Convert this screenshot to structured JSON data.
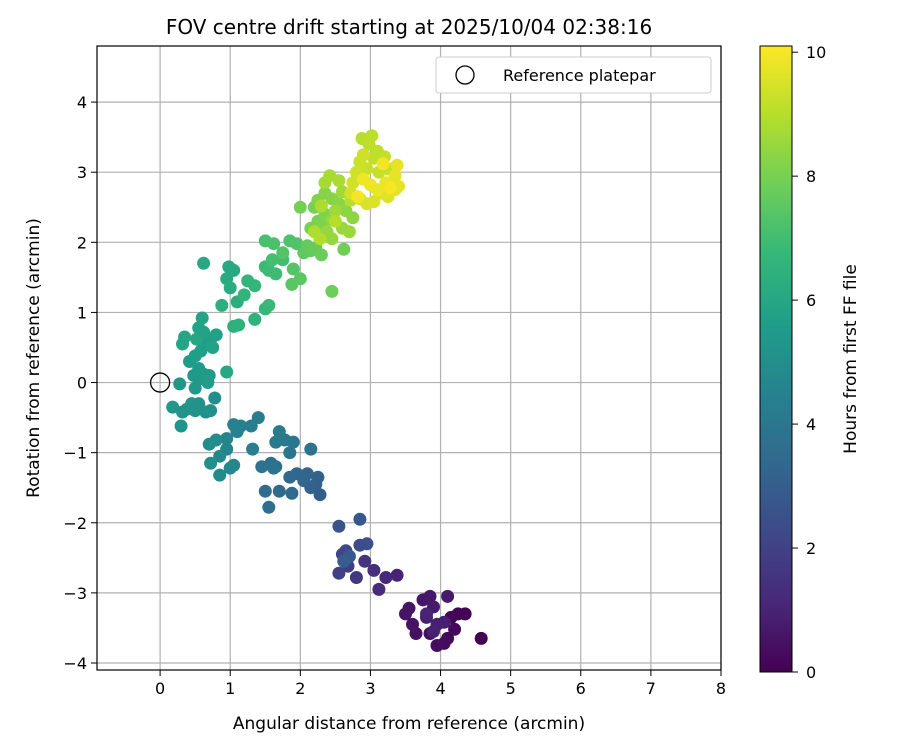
{
  "chart_data": {
    "type": "scatter",
    "title": "FOV centre drift starting at 2025/10/04 02:38:16",
    "xlabel": "Angular distance from reference (arcmin)",
    "ylabel": "Rotation from reference (arcmin)",
    "xlim": [
      -0.9,
      8.0
    ],
    "ylim": [
      -4.1,
      4.8
    ],
    "xticks": [
      "0",
      "1",
      "2",
      "3",
      "4",
      "5",
      "6",
      "7",
      "8"
    ],
    "yticks": [
      "−4",
      "−3",
      "−2",
      "−1",
      "0",
      "1",
      "2",
      "3",
      "4"
    ],
    "grid": true,
    "legend": {
      "location": "top-right",
      "entries": [
        "Reference platepar"
      ]
    },
    "reference_point": {
      "name": "Reference platepar",
      "x": 0,
      "y": 0
    },
    "colorbar": {
      "label": "Hours from first FF file",
      "min": 0,
      "max": 10.1,
      "ticks": [
        "0",
        "2",
        "4",
        "6",
        "8",
        "10"
      ],
      "colormap": [
        "#440154",
        "#482878",
        "#3e4989",
        "#31688e",
        "#26828e",
        "#1f9e89",
        "#35b779",
        "#6ece58",
        "#b5de2b",
        "#fde725"
      ]
    },
    "series": [
      {
        "name": "Hours 0-1",
        "points": [
          [
            4.58,
            -3.65
          ],
          [
            4.35,
            -3.3
          ],
          [
            4.25,
            -3.3
          ],
          [
            4.15,
            -3.35
          ],
          [
            4.2,
            -3.52
          ],
          [
            4.1,
            -3.65
          ],
          [
            4.05,
            -3.72
          ],
          [
            3.95,
            -3.75
          ],
          [
            3.85,
            -3.58
          ],
          [
            3.65,
            -3.58
          ],
          [
            3.6,
            -3.45
          ],
          [
            3.5,
            -3.3
          ],
          [
            3.55,
            -3.22
          ],
          [
            3.75,
            -3.1
          ],
          [
            3.85,
            -3.05
          ],
          [
            4.1,
            -3.05
          ],
          [
            3.9,
            -3.2
          ],
          [
            3.8,
            -3.35
          ],
          [
            3.95,
            -3.45
          ],
          [
            4.05,
            -3.42
          ],
          [
            3.9,
            -3.55
          ],
          [
            3.8,
            -3.3
          ]
        ],
        "hour_range": [
          0,
          1
        ]
      },
      {
        "name": "Hours 1-3",
        "points": [
          [
            3.38,
            -2.75
          ],
          [
            3.22,
            -2.78
          ],
          [
            3.12,
            -2.95
          ],
          [
            3.05,
            -2.68
          ],
          [
            2.92,
            -2.55
          ],
          [
            2.8,
            -2.78
          ],
          [
            2.68,
            -2.62
          ],
          [
            2.55,
            -2.72
          ],
          [
            2.6,
            -2.45
          ],
          [
            2.65,
            -2.4
          ],
          [
            2.85,
            -2.32
          ],
          [
            2.95,
            -2.3
          ],
          [
            2.55,
            -2.05
          ],
          [
            2.85,
            -1.95
          ],
          [
            2.7,
            -2.48
          ],
          [
            2.62,
            -2.55
          ]
        ],
        "hour_range": [
          1,
          3
        ]
      },
      {
        "name": "Hours 3-5",
        "points": [
          [
            2.28,
            -1.6
          ],
          [
            2.22,
            -1.45
          ],
          [
            2.15,
            -1.5
          ],
          [
            2.25,
            -1.35
          ],
          [
            2.1,
            -1.3
          ],
          [
            2.05,
            -1.4
          ],
          [
            1.95,
            -1.3
          ],
          [
            1.85,
            -1.35
          ],
          [
            1.88,
            -1.58
          ],
          [
            1.7,
            -1.55
          ],
          [
            1.5,
            -1.55
          ],
          [
            1.55,
            -1.78
          ],
          [
            1.65,
            -1.2
          ],
          [
            1.58,
            -1.15
          ],
          [
            1.45,
            -1.2
          ],
          [
            1.62,
            -1.22
          ],
          [
            2.15,
            -0.95
          ],
          [
            1.85,
            -1.0
          ],
          [
            1.9,
            -0.85
          ],
          [
            1.78,
            -0.82
          ],
          [
            1.65,
            -0.85
          ],
          [
            1.7,
            -0.7
          ],
          [
            1.4,
            -0.5
          ],
          [
            1.3,
            -0.62
          ],
          [
            1.32,
            -0.95
          ],
          [
            1.15,
            -0.62
          ],
          [
            1.05,
            -0.6
          ],
          [
            1.1,
            -0.7
          ],
          [
            0.95,
            -0.8
          ],
          [
            0.95,
            -0.95
          ],
          [
            1.05,
            -1.18
          ],
          [
            1.0,
            -1.22
          ],
          [
            0.85,
            -1.05
          ],
          [
            0.85,
            -1.32
          ],
          [
            0.8,
            -0.82
          ],
          [
            0.7,
            -0.88
          ],
          [
            0.72,
            -1.15
          ]
        ],
        "hour_range": [
          3,
          5
        ]
      },
      {
        "name": "Hours 5-6",
        "points": [
          [
            0.78,
            -0.22
          ],
          [
            0.72,
            -0.4
          ],
          [
            0.65,
            -0.42
          ],
          [
            0.55,
            -0.3
          ],
          [
            0.5,
            -0.4
          ],
          [
            0.45,
            -0.3
          ],
          [
            0.38,
            -0.38
          ],
          [
            0.32,
            -0.42
          ],
          [
            0.3,
            -0.62
          ],
          [
            0.18,
            -0.35
          ],
          [
            0.28,
            -0.02
          ],
          [
            0.5,
            -0.08
          ],
          [
            0.48,
            0.1
          ],
          [
            0.55,
            0.05
          ],
          [
            0.62,
            0.12
          ],
          [
            0.7,
            0.1
          ],
          [
            0.68,
            0.0
          ],
          [
            0.55,
            0.2
          ],
          [
            0.42,
            0.3
          ],
          [
            0.5,
            0.38
          ],
          [
            0.58,
            0.45
          ],
          [
            0.65,
            0.55
          ],
          [
            0.72,
            0.62
          ],
          [
            0.8,
            0.68
          ],
          [
            0.75,
            0.5
          ],
          [
            0.62,
            0.72
          ],
          [
            0.55,
            0.78
          ],
          [
            0.6,
            0.92
          ],
          [
            0.32,
            0.55
          ],
          [
            0.35,
            0.65
          ],
          [
            0.52,
            0.62
          ],
          [
            0.95,
            0.15
          ]
        ],
        "hour_range": [
          5,
          6
        ]
      },
      {
        "name": "Hours 6-8",
        "points": [
          [
            0.62,
            1.7
          ],
          [
            0.98,
            1.65
          ],
          [
            1.05,
            1.6
          ],
          [
            0.95,
            1.48
          ],
          [
            1.0,
            1.35
          ],
          [
            1.1,
            1.15
          ],
          [
            0.88,
            1.1
          ],
          [
            1.05,
            0.8
          ],
          [
            1.12,
            0.82
          ],
          [
            1.35,
            0.9
          ],
          [
            1.2,
            1.25
          ],
          [
            1.25,
            1.45
          ],
          [
            1.35,
            1.38
          ],
          [
            1.5,
            1.05
          ],
          [
            1.55,
            1.1
          ],
          [
            1.5,
            1.65
          ],
          [
            1.55,
            1.6
          ],
          [
            1.65,
            1.55
          ],
          [
            1.75,
            1.75
          ],
          [
            1.6,
            1.75
          ],
          [
            1.5,
            2.02
          ],
          [
            1.62,
            1.98
          ],
          [
            1.85,
            2.02
          ],
          [
            1.95,
            1.98
          ],
          [
            1.75,
            1.85
          ],
          [
            1.9,
            1.62
          ],
          [
            1.88,
            1.4
          ],
          [
            2.0,
            1.48
          ],
          [
            2.05,
            1.85
          ],
          [
            2.15,
            1.88
          ],
          [
            2.1,
            1.95
          ],
          [
            2.22,
            1.92
          ],
          [
            2.3,
            1.82
          ],
          [
            2.45,
            1.3
          ],
          [
            2.62,
            1.9
          ],
          [
            2.0,
            2.5
          ],
          [
            2.15,
            2.2
          ]
        ],
        "hour_range": [
          6,
          8
        ]
      },
      {
        "name": "Hours 8-9",
        "points": [
          [
            2.2,
            2.5
          ],
          [
            2.25,
            2.3
          ],
          [
            2.3,
            2.25
          ],
          [
            2.35,
            2.4
          ],
          [
            2.25,
            2.6
          ],
          [
            2.35,
            2.7
          ],
          [
            2.45,
            2.62
          ],
          [
            2.55,
            2.55
          ],
          [
            2.65,
            2.45
          ],
          [
            2.75,
            2.35
          ],
          [
            2.45,
            2.32
          ],
          [
            2.38,
            2.15
          ],
          [
            2.45,
            2.05
          ],
          [
            2.6,
            2.2
          ],
          [
            2.7,
            2.15
          ],
          [
            2.5,
            2.45
          ],
          [
            2.6,
            2.72
          ],
          [
            2.35,
            2.85
          ],
          [
            2.42,
            2.95
          ],
          [
            2.55,
            2.88
          ],
          [
            2.3,
            2.52
          ],
          [
            2.2,
            2.15
          ],
          [
            2.28,
            2.05
          ],
          [
            2.5,
            2.3
          ],
          [
            2.72,
            2.6
          ]
        ],
        "hour_range": [
          8,
          9
        ]
      },
      {
        "name": "Hours 9-10",
        "points": [
          [
            2.88,
            3.48
          ],
          [
            3.02,
            3.52
          ],
          [
            2.98,
            3.4
          ],
          [
            3.1,
            3.3
          ],
          [
            3.05,
            3.2
          ],
          [
            3.2,
            3.22
          ],
          [
            3.25,
            3.05
          ],
          [
            3.12,
            3.0
          ],
          [
            2.95,
            3.05
          ],
          [
            2.85,
            3.15
          ],
          [
            2.9,
            3.25
          ],
          [
            2.8,
            3.0
          ],
          [
            2.75,
            2.85
          ],
          [
            2.72,
            2.7
          ],
          [
            2.85,
            2.62
          ],
          [
            2.95,
            2.55
          ],
          [
            3.05,
            2.58
          ],
          [
            3.15,
            2.7
          ],
          [
            3.25,
            2.65
          ],
          [
            3.35,
            2.75
          ],
          [
            3.4,
            2.8
          ],
          [
            3.35,
            2.95
          ],
          [
            3.38,
            3.1
          ],
          [
            3.22,
            2.85
          ],
          [
            3.1,
            2.75
          ],
          [
            3.0,
            2.82
          ],
          [
            2.9,
            2.9
          ],
          [
            3.18,
            3.12
          ],
          [
            2.82,
            2.65
          ],
          [
            3.28,
            2.78
          ]
        ],
        "hour_range": [
          9,
          10
        ]
      }
    ]
  }
}
